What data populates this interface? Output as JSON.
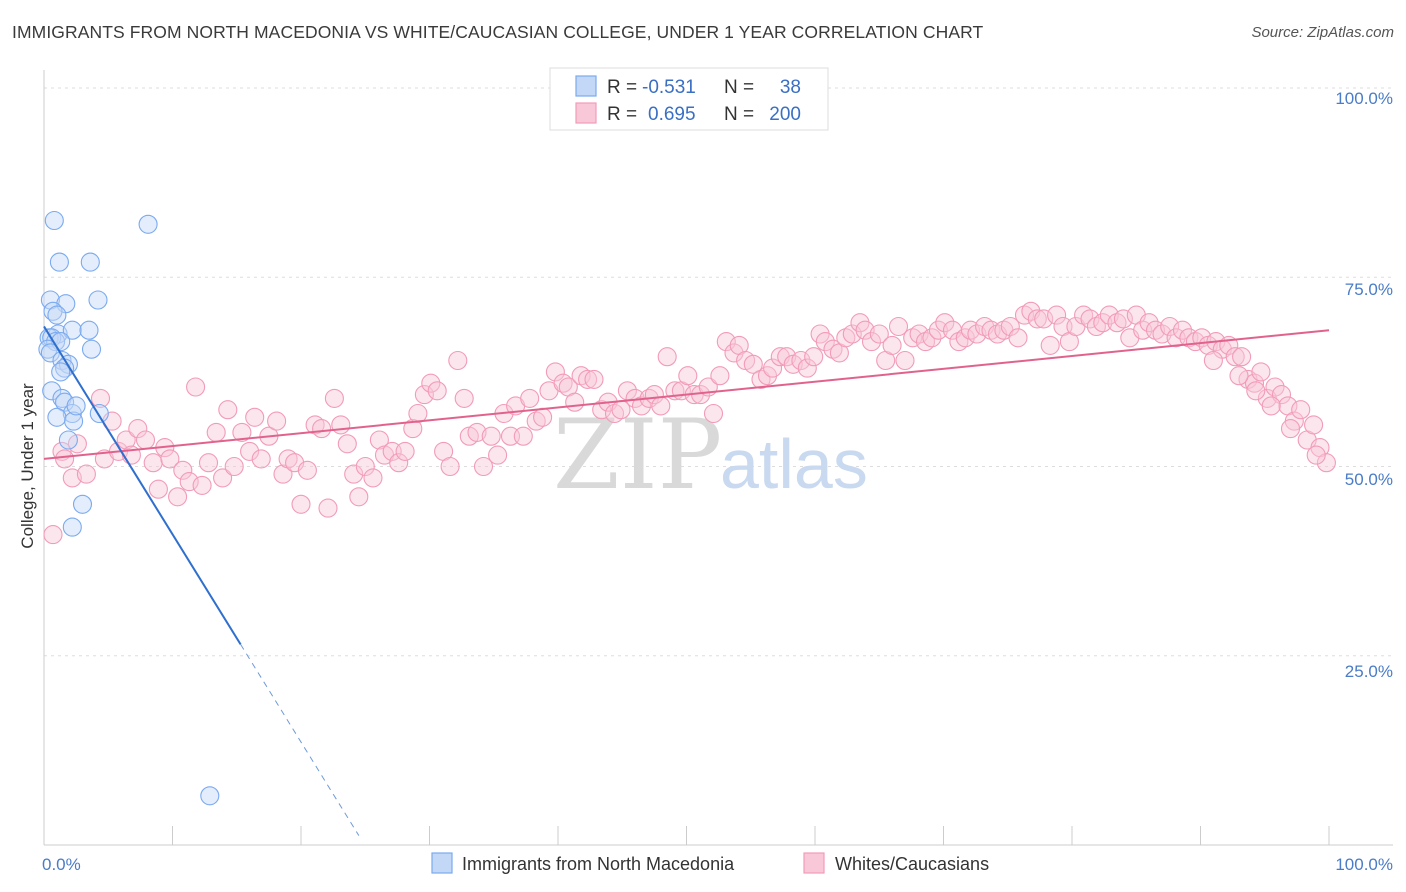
{
  "chart_data": {
    "type": "scatter",
    "title": "IMMIGRANTS FROM NORTH MACEDONIA VS WHITE/CAUCASIAN COLLEGE, UNDER 1 YEAR CORRELATION CHART",
    "source": "Source: ZipAtlas.com",
    "ylabel": "College, Under 1 year",
    "xlim": [
      0,
      100
    ],
    "ylim": [
      0,
      100
    ],
    "x_tick_labels": {
      "left": "0.0%",
      "right": "100.0%"
    },
    "y_tick_labels": [
      "100.0%",
      "75.0%",
      "50.0%",
      "25.0%"
    ],
    "y_tick_values": [
      100,
      75,
      50,
      25
    ],
    "watermark": {
      "zip": "ZIP",
      "atlas": "atlas"
    },
    "legend": {
      "rows": [
        {
          "r_label": "R =",
          "r_value": "-0.531",
          "n_label": "N =",
          "n_value": "38"
        },
        {
          "r_label": "R =",
          "r_value": "0.695",
          "n_label": "N =",
          "n_value": "200"
        }
      ]
    },
    "series": [
      {
        "name": "Immigrants from North Macedonia",
        "color": "#7aaaf0",
        "line_color": "#2f6fce",
        "trend": {
          "x0": 0,
          "y0": 68.5,
          "x1": 15.3,
          "y1": 26.5,
          "dash_x_end": 24.5
        },
        "points": [
          [
            0.8,
            82.5
          ],
          [
            8.1,
            82
          ],
          [
            1.2,
            77
          ],
          [
            3.6,
            77
          ],
          [
            0.5,
            72
          ],
          [
            1.7,
            71.5
          ],
          [
            4.2,
            72
          ],
          [
            0.7,
            70.5
          ],
          [
            1.0,
            70
          ],
          [
            1.1,
            67.5
          ],
          [
            2.2,
            68
          ],
          [
            3.5,
            68
          ],
          [
            0.4,
            67
          ],
          [
            0.6,
            67
          ],
          [
            0.9,
            66.5
          ],
          [
            1.3,
            66.5
          ],
          [
            0.3,
            65.5
          ],
          [
            0.5,
            65
          ],
          [
            3.7,
            65.5
          ],
          [
            1.4,
            64
          ],
          [
            1.9,
            63.5
          ],
          [
            1.6,
            63
          ],
          [
            1.3,
            62.5
          ],
          [
            0.6,
            60
          ],
          [
            1.4,
            59
          ],
          [
            1.6,
            58.5
          ],
          [
            2.2,
            57
          ],
          [
            4.3,
            57
          ],
          [
            1.0,
            56.5
          ],
          [
            2.3,
            56
          ],
          [
            2.5,
            58
          ],
          [
            1.9,
            53.5
          ],
          [
            3.0,
            45
          ],
          [
            2.2,
            42
          ],
          [
            12.9,
            6.5
          ]
        ]
      },
      {
        "name": "Whites/Caucasians",
        "color": "#f29bb8",
        "line_color": "#e0628d",
        "trend": {
          "x0": 0,
          "y0": 51,
          "x1": 100,
          "y1": 68
        },
        "points": [
          [
            0.7,
            41
          ],
          [
            1.4,
            52
          ],
          [
            1.6,
            51
          ],
          [
            2.2,
            48.5
          ],
          [
            2.6,
            53
          ],
          [
            3.3,
            49
          ],
          [
            4.4,
            59
          ],
          [
            4.7,
            51
          ],
          [
            5.3,
            56
          ],
          [
            5.8,
            52
          ],
          [
            6.4,
            53.5
          ],
          [
            6.8,
            51.5
          ],
          [
            7.3,
            55
          ],
          [
            7.9,
            53.5
          ],
          [
            8.5,
            50.5
          ],
          [
            8.9,
            47
          ],
          [
            9.4,
            52.5
          ],
          [
            9.8,
            51
          ],
          [
            10.4,
            46
          ],
          [
            10.8,
            49.5
          ],
          [
            11.3,
            48
          ],
          [
            11.8,
            60.5
          ],
          [
            12.3,
            47.5
          ],
          [
            12.8,
            50.5
          ],
          [
            13.4,
            54.5
          ],
          [
            13.9,
            48.5
          ],
          [
            14.3,
            57.5
          ],
          [
            14.8,
            50
          ],
          [
            15.4,
            54.5
          ],
          [
            16.0,
            52
          ],
          [
            16.4,
            56.5
          ],
          [
            16.9,
            51
          ],
          [
            17.5,
            54
          ],
          [
            18.1,
            56
          ],
          [
            18.6,
            49
          ],
          [
            19.0,
            51
          ],
          [
            19.5,
            50.5
          ],
          [
            20.0,
            45
          ],
          [
            20.5,
            49.5
          ],
          [
            21.1,
            55.5
          ],
          [
            21.6,
            55
          ],
          [
            22.1,
            44.5
          ],
          [
            22.6,
            59
          ],
          [
            23.1,
            55.5
          ],
          [
            23.6,
            53
          ],
          [
            24.1,
            49
          ],
          [
            24.5,
            46
          ],
          [
            25.0,
            50
          ],
          [
            25.6,
            48.5
          ],
          [
            26.1,
            53.5
          ],
          [
            26.5,
            51.5
          ],
          [
            27.1,
            52
          ],
          [
            27.6,
            50.5
          ],
          [
            28.1,
            52
          ],
          [
            28.7,
            55
          ],
          [
            29.1,
            57
          ],
          [
            29.6,
            59.5
          ],
          [
            30.1,
            61
          ],
          [
            30.6,
            60
          ],
          [
            31.1,
            52
          ],
          [
            31.6,
            50
          ],
          [
            32.2,
            64
          ],
          [
            32.7,
            59
          ],
          [
            33.1,
            54
          ],
          [
            33.7,
            54.5
          ],
          [
            34.2,
            50
          ],
          [
            34.8,
            54
          ],
          [
            35.3,
            51.5
          ],
          [
            35.8,
            57
          ],
          [
            36.3,
            54
          ],
          [
            36.7,
            58
          ],
          [
            37.3,
            54
          ],
          [
            37.8,
            59
          ],
          [
            38.3,
            56
          ],
          [
            38.8,
            56.5
          ],
          [
            39.3,
            60
          ],
          [
            39.8,
            62.5
          ],
          [
            40.4,
            61
          ],
          [
            40.8,
            60.5
          ],
          [
            41.3,
            58.5
          ],
          [
            41.8,
            62
          ],
          [
            42.3,
            61.5
          ],
          [
            42.8,
            61.5
          ],
          [
            43.4,
            57.5
          ],
          [
            43.9,
            58.5
          ],
          [
            44.4,
            57
          ],
          [
            44.9,
            57.5
          ],
          [
            45.4,
            60
          ],
          [
            46.0,
            59
          ],
          [
            46.5,
            58
          ],
          [
            47.1,
            59
          ],
          [
            47.5,
            59.5
          ],
          [
            48.0,
            58
          ],
          [
            48.5,
            64.5
          ],
          [
            49.1,
            60
          ],
          [
            49.6,
            60
          ],
          [
            50.1,
            62
          ],
          [
            50.6,
            59.5
          ],
          [
            51.1,
            59.5
          ],
          [
            51.7,
            60.5
          ],
          [
            52.1,
            57
          ],
          [
            52.6,
            62
          ],
          [
            53.1,
            66.5
          ],
          [
            53.7,
            65
          ],
          [
            54.1,
            66
          ],
          [
            54.6,
            64
          ],
          [
            55.2,
            63.5
          ],
          [
            55.8,
            61.5
          ],
          [
            56.3,
            62
          ],
          [
            56.7,
            63
          ],
          [
            57.3,
            64.5
          ],
          [
            57.8,
            64.5
          ],
          [
            58.3,
            63.5
          ],
          [
            58.9,
            64
          ],
          [
            59.4,
            63
          ],
          [
            59.9,
            64.5
          ],
          [
            60.4,
            67.5
          ],
          [
            60.8,
            66.5
          ],
          [
            61.4,
            65.5
          ],
          [
            61.9,
            65
          ],
          [
            62.4,
            67
          ],
          [
            62.9,
            67.5
          ],
          [
            63.5,
            69
          ],
          [
            63.9,
            68
          ],
          [
            64.4,
            66.5
          ],
          [
            65.0,
            67.5
          ],
          [
            65.5,
            64
          ],
          [
            66.0,
            66
          ],
          [
            66.5,
            68.5
          ],
          [
            67.0,
            64
          ],
          [
            67.6,
            67
          ],
          [
            68.1,
            67.5
          ],
          [
            68.6,
            66.5
          ],
          [
            69.1,
            67
          ],
          [
            69.6,
            68
          ],
          [
            70.1,
            69
          ],
          [
            70.7,
            68
          ],
          [
            71.2,
            66.5
          ],
          [
            71.7,
            67
          ],
          [
            72.1,
            68
          ],
          [
            72.6,
            67.5
          ],
          [
            73.2,
            68.5
          ],
          [
            73.7,
            68
          ],
          [
            74.2,
            67.5
          ],
          [
            74.7,
            68
          ],
          [
            75.2,
            68.5
          ],
          [
            75.8,
            67
          ],
          [
            76.3,
            70
          ],
          [
            76.8,
            70.5
          ],
          [
            77.3,
            69.5
          ],
          [
            77.8,
            69.5
          ],
          [
            78.3,
            66
          ],
          [
            78.8,
            70
          ],
          [
            79.3,
            68.5
          ],
          [
            79.8,
            66.5
          ],
          [
            80.3,
            68.5
          ],
          [
            80.9,
            70
          ],
          [
            81.4,
            69.5
          ],
          [
            81.9,
            68.5
          ],
          [
            82.4,
            69
          ],
          [
            82.9,
            70
          ],
          [
            83.5,
            69
          ],
          [
            84.0,
            69.5
          ],
          [
            84.5,
            67
          ],
          [
            85.0,
            70
          ],
          [
            85.5,
            68
          ],
          [
            86.0,
            69
          ],
          [
            86.5,
            68
          ],
          [
            87.0,
            67.5
          ],
          [
            87.6,
            68.5
          ],
          [
            88.1,
            67
          ],
          [
            88.6,
            68
          ],
          [
            89.1,
            67
          ],
          [
            89.6,
            66.5
          ],
          [
            90.1,
            67
          ],
          [
            90.6,
            66
          ],
          [
            91.2,
            66.5
          ],
          [
            91.7,
            65.5
          ],
          [
            92.2,
            66
          ],
          [
            92.7,
            64.5
          ],
          [
            93.2,
            64.5
          ],
          [
            93.7,
            61.5
          ],
          [
            94.2,
            61
          ],
          [
            94.7,
            62.5
          ],
          [
            95.2,
            59
          ],
          [
            95.8,
            60.5
          ],
          [
            96.3,
            59.5
          ],
          [
            96.8,
            58
          ],
          [
            97.3,
            56
          ],
          [
            97.8,
            57.5
          ],
          [
            98.3,
            53.5
          ],
          [
            98.8,
            55.5
          ],
          [
            99.3,
            52.5
          ],
          [
            99.8,
            50.5
          ],
          [
            99.0,
            51.5
          ],
          [
            97.0,
            55
          ],
          [
            95.5,
            58
          ],
          [
            94.3,
            60
          ],
          [
            93.0,
            62
          ],
          [
            91.0,
            64
          ]
        ]
      }
    ]
  }
}
